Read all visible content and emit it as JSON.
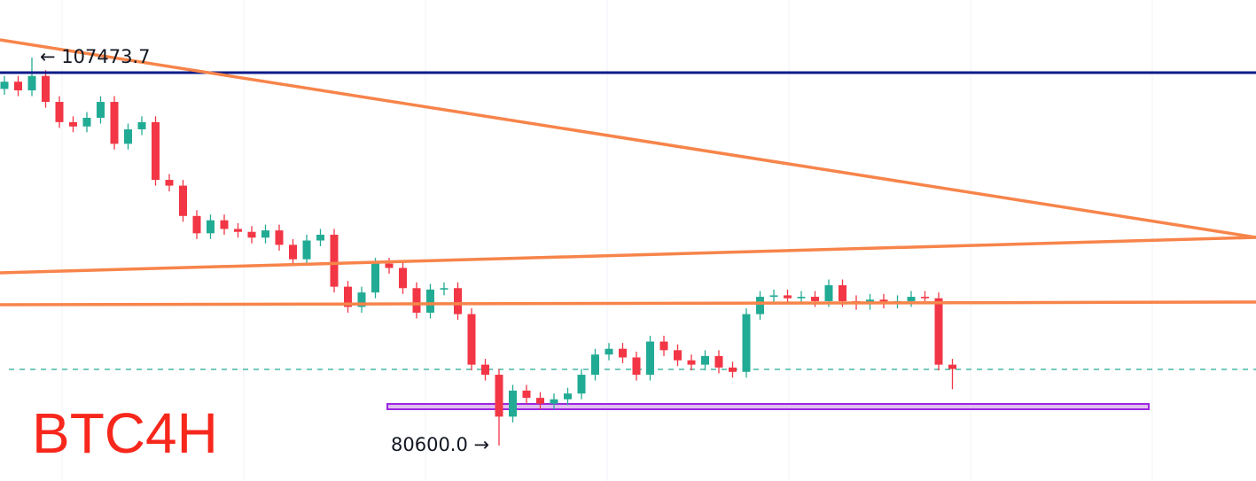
{
  "chart_data": {
    "type": "candlestick",
    "title": "BTC4H",
    "annotations": [
      "← 107473.7",
      "80600.0 →"
    ],
    "up_color": "#22ab94",
    "down_color": "#f23645",
    "ylim": [
      78140,
      111460
    ],
    "open": [
      105300,
      105800,
      105200,
      106200,
      104400,
      103000,
      102700,
      103300,
      104400,
      101500,
      102500,
      103000,
      99000,
      98600,
      96500,
      95300,
      96200,
      95600,
      95400,
      95000,
      95500,
      94500,
      93500,
      94800,
      95200,
      91600,
      90200,
      91200,
      93200,
      92900,
      91500,
      89800,
      91400,
      91500,
      89700,
      86200,
      85500,
      82600,
      84400,
      83900,
      83500,
      83800,
      84200,
      85500,
      86900,
      87300,
      86700,
      85500,
      87800,
      87200,
      86500,
      86200,
      86800,
      86000,
      85700,
      89700,
      90900,
      91000,
      90800,
      90900,
      90600,
      91700,
      90600,
      90400,
      90700,
      90500,
      90600,
      90900,
      90800,
      86200
    ],
    "high": [
      106200,
      106200,
      107473.7,
      106600,
      104800,
      103400,
      103700,
      104800,
      104800,
      102900,
      103400,
      103400,
      99400,
      99000,
      96900,
      96600,
      96600,
      96000,
      95800,
      95900,
      95900,
      94900,
      95200,
      95600,
      95600,
      92000,
      91600,
      93600,
      93600,
      93300,
      91900,
      91800,
      91900,
      91900,
      90100,
      86600,
      85900,
      84800,
      84800,
      84300,
      84200,
      84600,
      85900,
      87300,
      87700,
      87700,
      87100,
      88200,
      88200,
      87600,
      86900,
      87200,
      87200,
      86400,
      90100,
      91300,
      91400,
      91400,
      91300,
      91300,
      92100,
      92100,
      91000,
      91100,
      91100,
      91000,
      91300,
      91300,
      91200,
      86600
    ],
    "low": [
      104900,
      104800,
      104800,
      104000,
      102600,
      102300,
      102300,
      102900,
      101100,
      101100,
      102100,
      98600,
      98200,
      96100,
      94900,
      94900,
      95200,
      95000,
      94600,
      94600,
      94100,
      93100,
      93100,
      94400,
      91200,
      89800,
      89800,
      90800,
      92500,
      91100,
      89400,
      89400,
      91000,
      89300,
      85800,
      85100,
      80600,
      82200,
      83500,
      83100,
      83100,
      83400,
      83800,
      85100,
      86500,
      86300,
      85100,
      85100,
      86800,
      86100,
      85800,
      85800,
      85600,
      85300,
      85300,
      89300,
      90500,
      90400,
      90400,
      90200,
      90200,
      90200,
      90000,
      90000,
      90100,
      90100,
      90200,
      90400,
      85800,
      84500
    ],
    "close": [
      105800,
      105200,
      106200,
      104400,
      103000,
      102700,
      103300,
      104400,
      101500,
      102500,
      103000,
      99000,
      98600,
      96500,
      95300,
      96200,
      95600,
      95400,
      95000,
      95500,
      94500,
      93500,
      94800,
      95200,
      91600,
      90200,
      91200,
      93200,
      92900,
      91500,
      89800,
      91400,
      91500,
      89700,
      86200,
      85500,
      82600,
      84400,
      83900,
      83500,
      83800,
      84200,
      85500,
      86900,
      87300,
      86700,
      85500,
      87800,
      87200,
      86500,
      86200,
      86800,
      86000,
      85700,
      89700,
      90900,
      91000,
      90800,
      90900,
      90600,
      91700,
      90600,
      90400,
      90700,
      90500,
      90600,
      90900,
      90800,
      86200,
      85900
    ]
  }
}
